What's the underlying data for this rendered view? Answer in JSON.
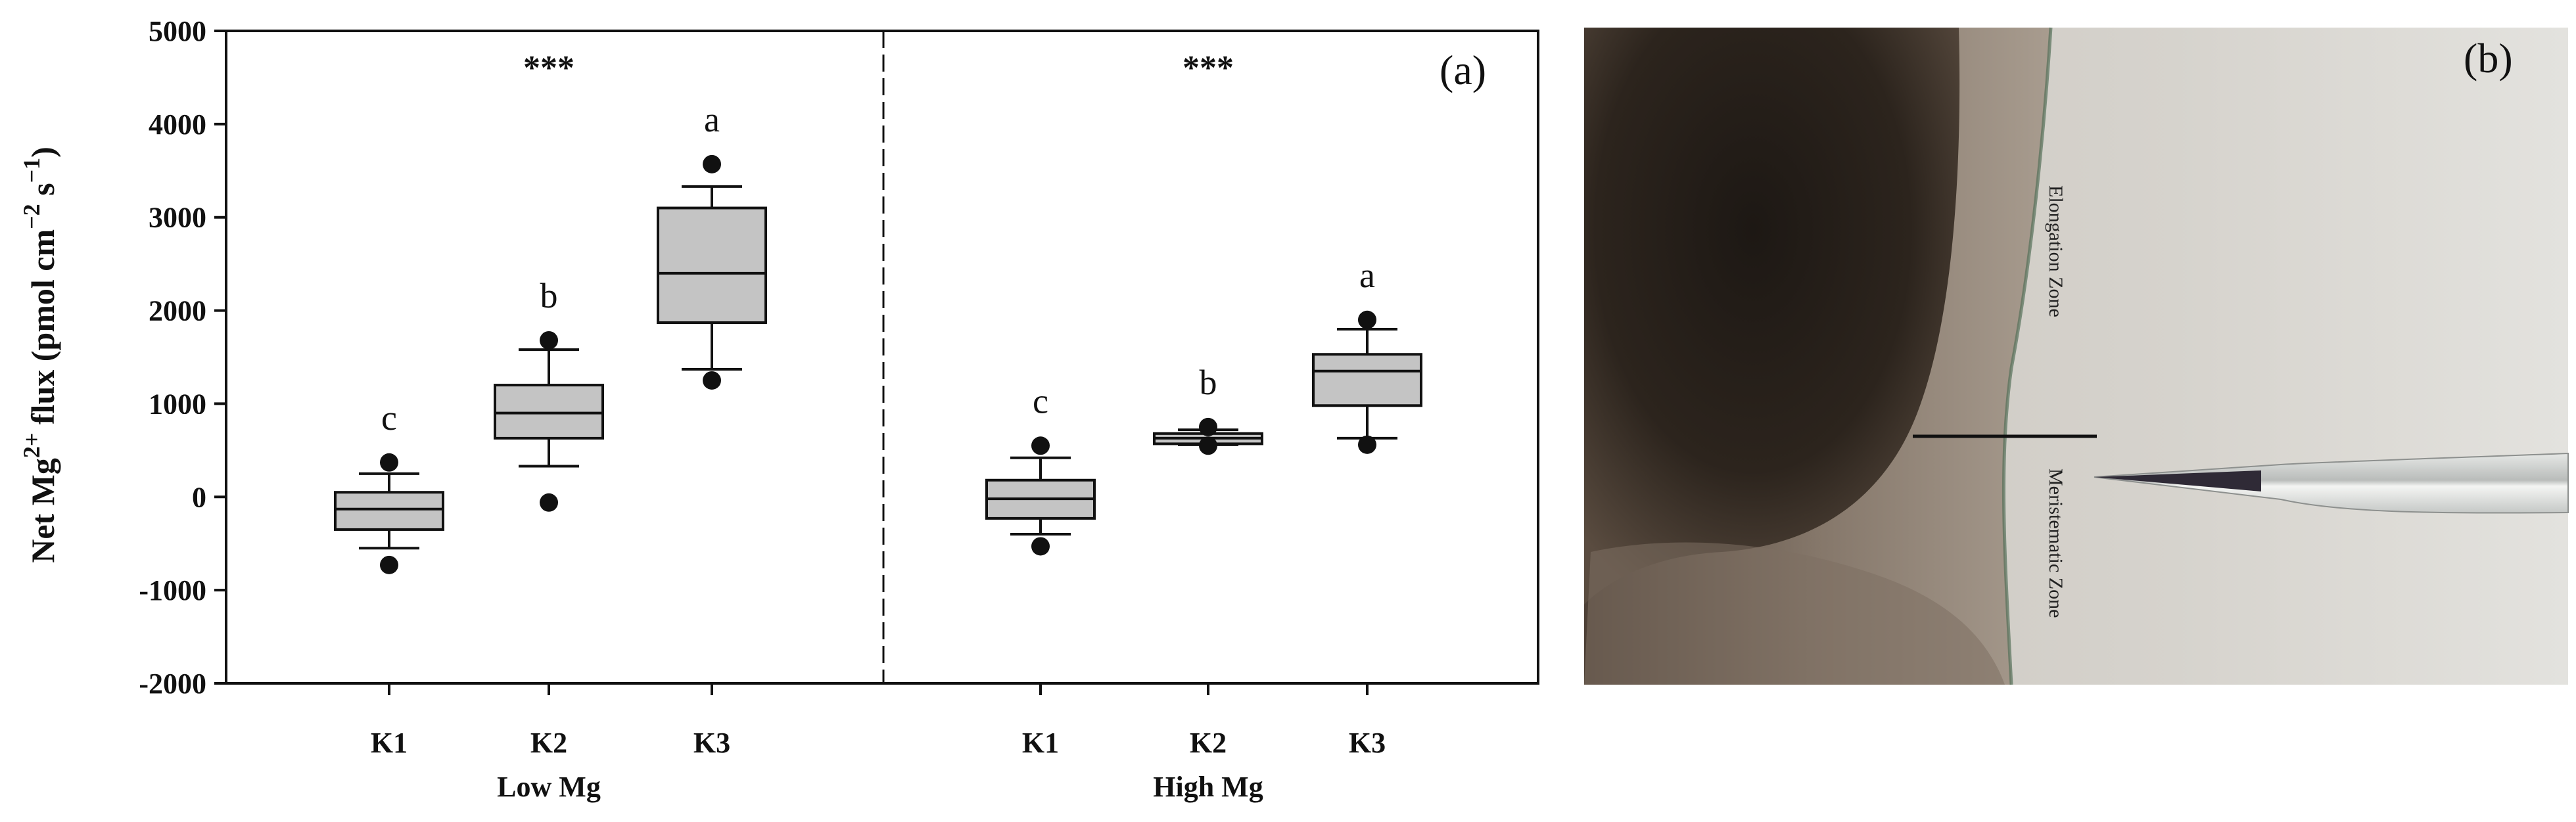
{
  "chart_data": {
    "type": "box",
    "panel_label": "(a)",
    "ylabel_parts": {
      "prefix": "Net Mg",
      "superscript": "2+",
      "middle": " flux (pmol cm",
      "unit_exp_1": "−2",
      "s": " s",
      "unit_exp_2": "−1",
      "suffix": ")"
    },
    "ylim": [
      -2000,
      5000
    ],
    "yticks": [
      "-2000",
      "-1000",
      "0",
      "1000",
      "2000",
      "3000",
      "4000",
      "5000"
    ],
    "grid": false,
    "groups": [
      {
        "name": "Low Mg",
        "significance": "***",
        "boxes": [
          {
            "category": "K1",
            "letter": "c",
            "whisker_low": -550,
            "q1": -350,
            "median": -130,
            "q3": 50,
            "whisker_high": 250,
            "outliers": [
              -730,
              370
            ]
          },
          {
            "category": "K2",
            "letter": "b",
            "whisker_low": 330,
            "q1": 630,
            "median": 900,
            "q3": 1200,
            "whisker_high": 1580,
            "outliers": [
              -60,
              1680
            ]
          },
          {
            "category": "K3",
            "letter": "a",
            "whisker_low": 1370,
            "q1": 1870,
            "median": 2400,
            "q3": 3100,
            "whisker_high": 3330,
            "outliers": [
              1250,
              3570
            ]
          }
        ]
      },
      {
        "name": "High Mg",
        "significance": "***",
        "boxes": [
          {
            "category": "K1",
            "letter": "c",
            "whisker_low": -400,
            "q1": -230,
            "median": -20,
            "q3": 180,
            "whisker_high": 420,
            "outliers": [
              -530,
              550
            ]
          },
          {
            "category": "K2",
            "letter": "b",
            "whisker_low": 560,
            "q1": 570,
            "median": 630,
            "q3": 680,
            "whisker_high": 720,
            "outliers": [
              550,
              750
            ]
          },
          {
            "category": "K3",
            "letter": "a",
            "whisker_low": 630,
            "q1": 980,
            "median": 1350,
            "q3": 1530,
            "whisker_high": 1800,
            "outliers": [
              560,
              1900
            ]
          }
        ]
      }
    ],
    "colors": {
      "box_fill": "#c4c4c4",
      "line": "#111111"
    }
  },
  "photo": {
    "panel_label": "(b)",
    "zone_upper": "Elongation Zone",
    "zone_lower": "Meristematic Zone"
  }
}
